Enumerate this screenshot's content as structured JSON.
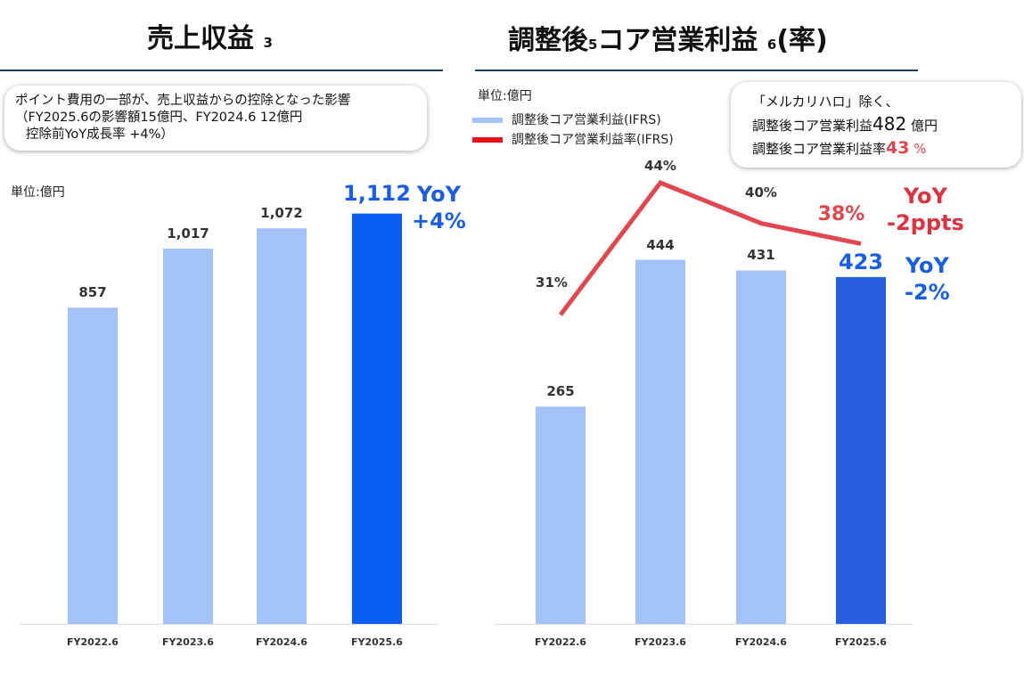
{
  "chart_data": [
    {
      "type": "bar",
      "title": "売上収益",
      "title_note": "3",
      "unit_label": "単位:億円",
      "categories": [
        "FY2022.6",
        "FY2023.6",
        "FY2024.6",
        "FY2025.6"
      ],
      "values": [
        857,
        1017,
        1072,
        1112
      ],
      "value_labels": [
        "857",
        "1,017",
        "1,072",
        "1,112"
      ],
      "colors": {
        "bar": "#a3c2f7",
        "highlight": "#0a5ef2"
      },
      "callout": [
        "ポイント費用の一部が、売上収益からの控除となった影響",
        "（FY2025.6の影響額15億円、FY2024.6 12億円",
        "控除前YoY成長率 +4%）"
      ],
      "yoy": [
        "YoY",
        "+4%"
      ],
      "yoy_color": "#1a5ee8"
    },
    {
      "type": "bar+line",
      "title": "調整後",
      "title_note1": "5",
      "title_mid": "コア営業利益",
      "title_note2": "6",
      "title_end": "(率)",
      "unit_label": "単位:億円",
      "categories": [
        "FY2022.6",
        "FY2023.6",
        "FY2024.6",
        "FY2025.6"
      ],
      "series": [
        {
          "name": "調整後コア営業利益(IFRS)",
          "type": "bar",
          "values": [
            265,
            444,
            431,
            423
          ],
          "value_labels": [
            "265",
            "444",
            "431",
            "423"
          ],
          "color": "#a3c2f7",
          "highlight": "#2a5de0"
        },
        {
          "name": "調整後コア営業利益率(IFRS)",
          "type": "line",
          "values": [
            31,
            44,
            40,
            38
          ],
          "value_labels": [
            "31%",
            "44%",
            "40%",
            "38%"
          ],
          "color": "#e0474f"
        }
      ],
      "callout": [
        "「メルカリハロ」除く、",
        "調整後コア営業利益",
        "482",
        "億円",
        "調整後コア営業利益率",
        "43",
        "%"
      ],
      "yoy_rate": [
        "YoY",
        "-2ppts"
      ],
      "yoy_rate_color": "#e0313f",
      "yoy": [
        "YoY",
        "-2%"
      ],
      "yoy_color": "#1a5ee8"
    }
  ]
}
